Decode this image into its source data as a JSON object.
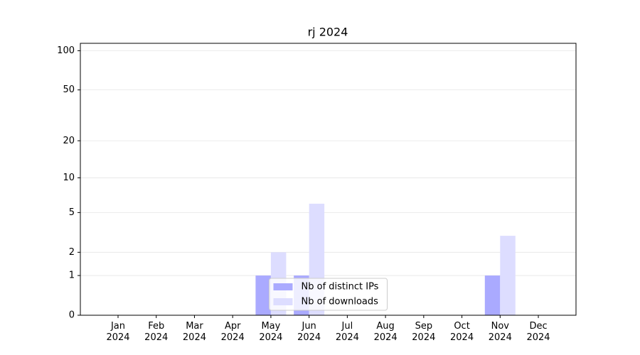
{
  "chart_data": {
    "type": "bar",
    "title": "rj 2024",
    "categories": [
      "Jan 2024",
      "Feb 2024",
      "Mar 2024",
      "Apr 2024",
      "May 2024",
      "Jun 2024",
      "Jul 2024",
      "Aug 2024",
      "Sep 2024",
      "Oct 2024",
      "Nov 2024",
      "Dec 2024"
    ],
    "series": [
      {
        "name": "Nb of distinct IPs",
        "color": "#aaaaff",
        "values": [
          0,
          0,
          0,
          0,
          1,
          1,
          0,
          0,
          0,
          0,
          1,
          0
        ]
      },
      {
        "name": "Nb of downloads",
        "color": "#ddddff",
        "values": [
          0,
          0,
          0,
          0,
          2,
          6,
          0,
          0,
          0,
          0,
          3,
          0
        ]
      }
    ],
    "yscale": "log1p",
    "ylim": [
      0,
      114
    ],
    "yticks": [
      0,
      1,
      2,
      5,
      10,
      20,
      50,
      100
    ],
    "grid": true,
    "legend": "lower center"
  }
}
